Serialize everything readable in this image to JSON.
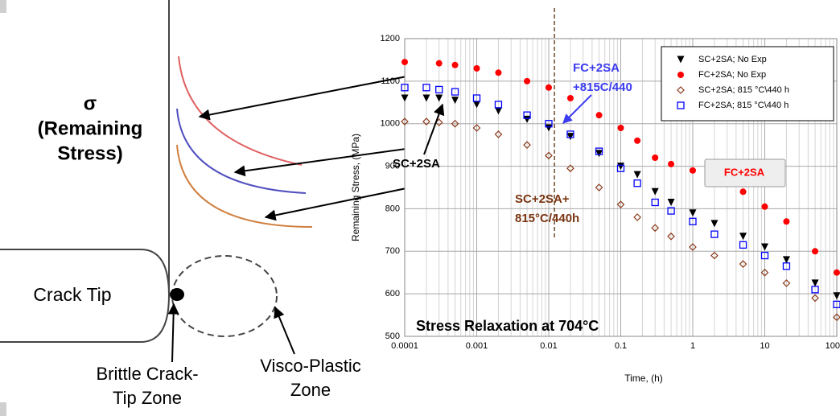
{
  "chart_data": {
    "type": "scatter",
    "title": "Stress Relaxation at 704°C",
    "x_label": "Time, (h)",
    "y_label": "Remaining Stress, (MPa)",
    "xlim": [
      0.0001,
      100
    ],
    "ylim": [
      500,
      1200
    ],
    "xticks": [
      0.0001,
      0.001,
      0.01,
      0.1,
      1,
      10,
      100
    ],
    "yticks": [
      500,
      600,
      700,
      800,
      900,
      1000,
      1100,
      1200
    ],
    "log_x": true,
    "grid": true,
    "legend": "upper right",
    "vline_x": 0.012,
    "series": [
      {
        "name": "SC+2SA; No Exp",
        "color": "#000000",
        "marker": "triangle",
        "x": [
          0.0001,
          0.0002,
          0.0003,
          0.0005,
          0.001,
          0.002,
          0.005,
          0.01,
          0.02,
          0.05,
          0.1,
          0.17,
          0.3,
          0.5,
          1,
          2,
          5,
          10,
          20,
          50,
          100
        ],
        "values": [
          1060,
          1060,
          1060,
          1055,
          1045,
          1030,
          1010,
          990,
          970,
          930,
          900,
          880,
          840,
          815,
          790,
          765,
          735,
          710,
          680,
          625,
          595
        ]
      },
      {
        "name": "FC+2SA; No Exp",
        "color": "#ff0000",
        "marker": "circle",
        "x": [
          0.0001,
          0.0003,
          0.0005,
          0.001,
          0.002,
          0.005,
          0.01,
          0.02,
          0.05,
          0.1,
          0.17,
          0.3,
          0.5,
          1,
          2,
          5,
          10,
          20,
          50,
          100
        ],
        "values": [
          1145,
          1142,
          1138,
          1130,
          1120,
          1100,
          1085,
          1060,
          1020,
          990,
          960,
          920,
          905,
          890,
          870,
          840,
          805,
          770,
          700,
          650
        ]
      },
      {
        "name": "SC+2SA; 815 °C\\440 h",
        "color": "#8b3a1a",
        "marker": "diamond",
        "x": [
          0.0001,
          0.0002,
          0.0003,
          0.0005,
          0.001,
          0.002,
          0.005,
          0.01,
          0.02,
          0.05,
          0.1,
          0.17,
          0.3,
          0.5,
          1,
          2,
          5,
          10,
          20,
          50,
          100
        ],
        "values": [
          1005,
          1005,
          1003,
          1000,
          990,
          975,
          950,
          925,
          895,
          850,
          810,
          780,
          755,
          735,
          710,
          690,
          670,
          650,
          625,
          590,
          545
        ]
      },
      {
        "name": "FC+2SA; 815 °C\\440 h",
        "color": "#0000ff",
        "marker": "square",
        "x": [
          0.0001,
          0.0002,
          0.0003,
          0.0005,
          0.001,
          0.002,
          0.005,
          0.01,
          0.02,
          0.05,
          0.1,
          0.17,
          0.3,
          0.5,
          1,
          2,
          5,
          10,
          20,
          50,
          100
        ],
        "values": [
          1085,
          1085,
          1080,
          1075,
          1060,
          1045,
          1020,
          1000,
          975,
          935,
          895,
          860,
          815,
          795,
          770,
          740,
          715,
          690,
          665,
          610,
          575
        ]
      }
    ],
    "annotations": [
      {
        "lines": [
          "FC+2SA",
          "+815C/440"
        ],
        "color": "#3c3cf0"
      },
      {
        "lines": [
          "SC+2SA"
        ],
        "color": "#000000"
      },
      {
        "lines": [
          "SC+2SA+",
          "815°C/440h"
        ],
        "color": "#7a3510"
      },
      {
        "lines": [
          "FC+2SA"
        ],
        "color": "#ff0000"
      }
    ]
  },
  "schematic": {
    "sigma": "σ",
    "stress_lines": [
      "(Remaining",
      "Stress)"
    ],
    "crack_tip": "Crack Tip",
    "brittle": [
      "Brittle Crack-",
      "Tip Zone"
    ],
    "visco": [
      "Visco-Plastic",
      "Zone"
    ]
  }
}
